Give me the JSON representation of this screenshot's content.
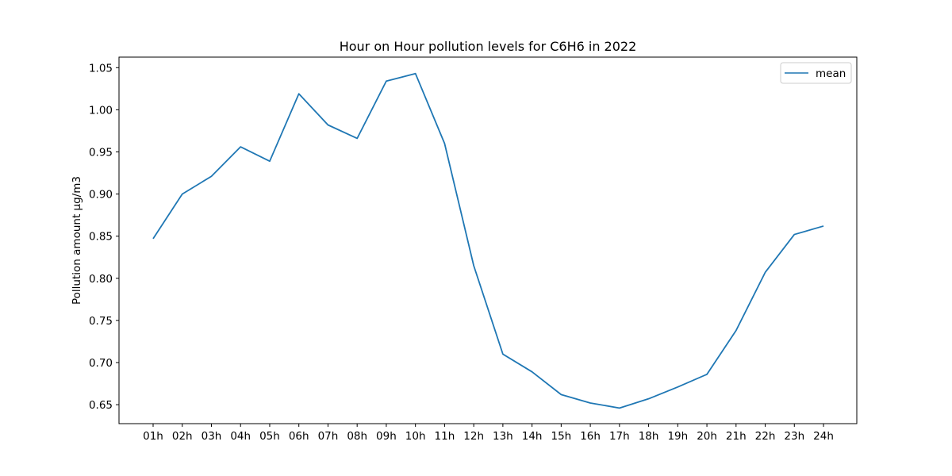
{
  "chart_data": {
    "type": "line",
    "title": "Hour on Hour pollution levels for C6H6 in 2022",
    "xlabel": "",
    "ylabel": "Pollution amount µg/m3",
    "categories": [
      "01h",
      "02h",
      "03h",
      "04h",
      "05h",
      "06h",
      "07h",
      "08h",
      "09h",
      "10h",
      "11h",
      "12h",
      "13h",
      "14h",
      "15h",
      "16h",
      "17h",
      "18h",
      "19h",
      "20h",
      "21h",
      "22h",
      "23h",
      "24h"
    ],
    "series": [
      {
        "name": "mean",
        "color": "#1f77b4",
        "values": [
          0.847,
          0.9,
          0.921,
          0.956,
          0.939,
          1.019,
          0.982,
          0.966,
          1.034,
          1.043,
          0.96,
          0.815,
          0.71,
          0.689,
          0.662,
          0.652,
          0.646,
          0.657,
          0.671,
          0.686,
          0.738,
          0.807,
          0.852,
          0.862
        ]
      }
    ],
    "yticks": [
      "0.65",
      "0.70",
      "0.75",
      "0.80",
      "0.85",
      "0.90",
      "0.95",
      "1.00",
      "1.05"
    ],
    "ylim": [
      0.6275,
      1.0625
    ],
    "grid": false,
    "legend_position": "top-right"
  }
}
